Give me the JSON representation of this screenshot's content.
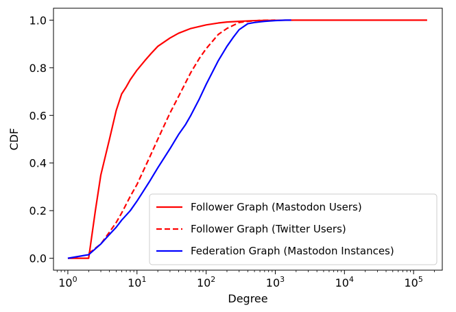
{
  "chart_data": {
    "type": "line",
    "xscale": "log",
    "xlabel": "Degree",
    "ylabel": "CDF",
    "xlim": [
      0.62,
      260000
    ],
    "ylim": [
      -0.05,
      1.05
    ],
    "xticks": [
      {
        "value": 1,
        "base": "10",
        "exp": "0"
      },
      {
        "value": 10,
        "base": "10",
        "exp": "1"
      },
      {
        "value": 100,
        "base": "10",
        "exp": "2"
      },
      {
        "value": 1000,
        "base": "10",
        "exp": "3"
      },
      {
        "value": 10000,
        "base": "10",
        "exp": "4"
      },
      {
        "value": 100000,
        "base": "10",
        "exp": "5"
      }
    ],
    "yticks": [
      {
        "value": 0.0,
        "label": "0.0"
      },
      {
        "value": 0.2,
        "label": "0.2"
      },
      {
        "value": 0.4,
        "label": "0.4"
      },
      {
        "value": 0.6,
        "label": "0.6"
      },
      {
        "value": 0.8,
        "label": "0.8"
      },
      {
        "value": 1.0,
        "label": "1.0"
      }
    ],
    "legend_position": "lower-right",
    "series": [
      {
        "name": "Follower Graph (Mastodon Users)",
        "color": "#ff0000",
        "style": "solid",
        "x": [
          1,
          2,
          2.5,
          3,
          4,
          5,
          6,
          7,
          8,
          10,
          13,
          16,
          20,
          30,
          40,
          60,
          100,
          150,
          200,
          300,
          500,
          800,
          1000,
          2000,
          5000,
          10000,
          50000,
          157000
        ],
        "y": [
          0.0,
          0.0,
          0.2,
          0.35,
          0.5,
          0.62,
          0.69,
          0.72,
          0.75,
          0.79,
          0.83,
          0.86,
          0.89,
          0.925,
          0.945,
          0.965,
          0.98,
          0.988,
          0.992,
          0.995,
          0.998,
          0.999,
          0.9995,
          1.0,
          1.0,
          1.0,
          1.0,
          1.0
        ]
      },
      {
        "name": "Follower Graph (Twitter Users)",
        "color": "#ff0000",
        "style": "dashed",
        "x": [
          2,
          3,
          4,
          5,
          6,
          8,
          10,
          15,
          20,
          30,
          40,
          60,
          80,
          100,
          150,
          200,
          300,
          400,
          600,
          1000
        ],
        "y": [
          0.02,
          0.06,
          0.11,
          0.15,
          0.19,
          0.26,
          0.31,
          0.42,
          0.5,
          0.61,
          0.68,
          0.78,
          0.84,
          0.88,
          0.94,
          0.965,
          0.99,
          0.995,
          0.999,
          1.0
        ]
      },
      {
        "name": "Federation Graph (Mastodon Instances)",
        "color": "#0000ff",
        "style": "solid",
        "x": [
          1,
          2,
          3,
          4,
          5,
          6,
          8,
          10,
          15,
          20,
          30,
          40,
          50,
          60,
          80,
          100,
          150,
          200,
          250,
          300,
          400,
          500,
          700,
          1000,
          1400,
          1700
        ],
        "y": [
          0.0,
          0.015,
          0.06,
          0.1,
          0.13,
          0.16,
          0.2,
          0.24,
          0.32,
          0.38,
          0.46,
          0.52,
          0.56,
          0.6,
          0.67,
          0.73,
          0.83,
          0.89,
          0.93,
          0.96,
          0.985,
          0.99,
          0.995,
          0.998,
          1.0,
          1.0
        ]
      }
    ]
  }
}
